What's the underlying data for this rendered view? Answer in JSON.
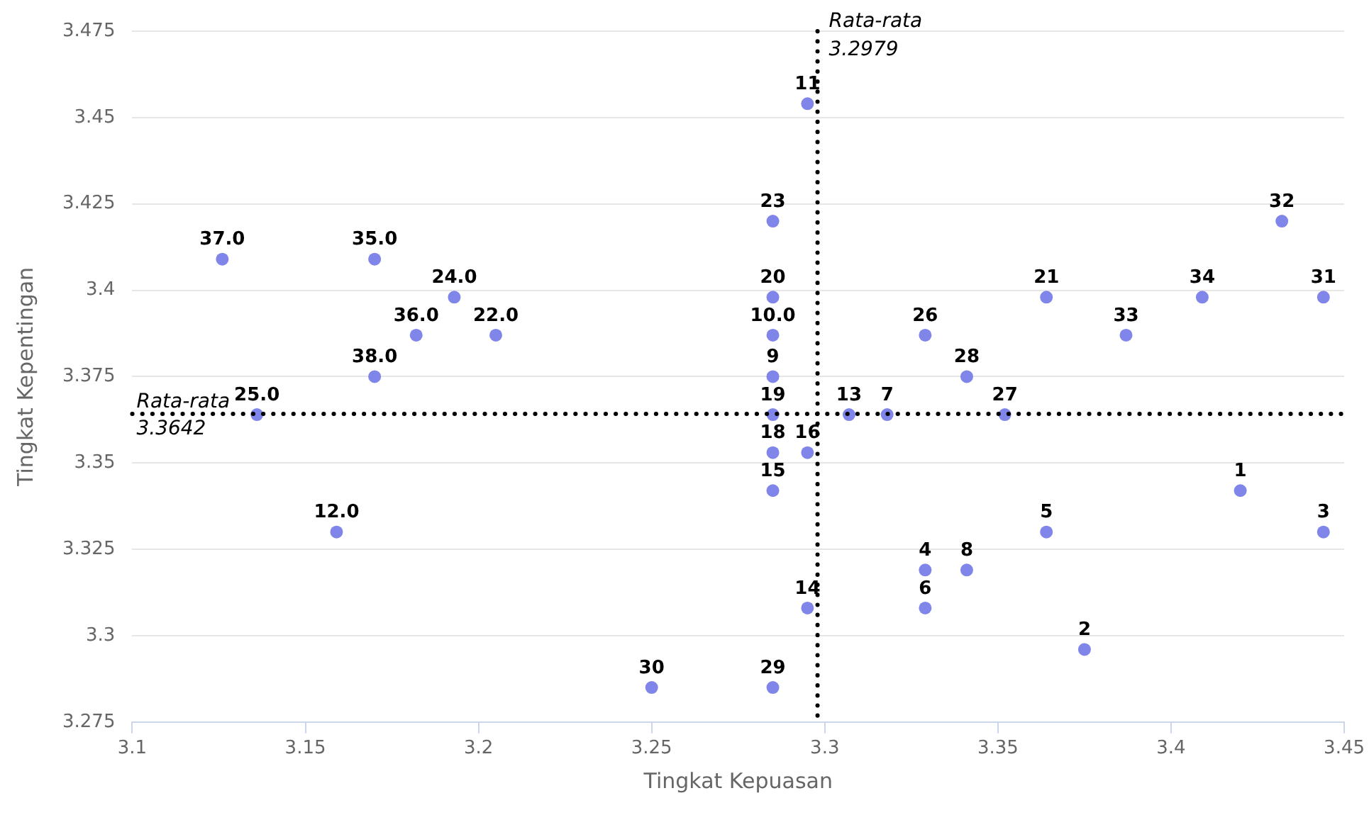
{
  "chart_data": {
    "type": "scatter",
    "xlabel": "Tingkat Kepuasan",
    "ylabel": "Tingkat Kepentingan",
    "xlim": [
      3.1,
      3.45
    ],
    "xticks": [
      3.1,
      3.15,
      3.2,
      3.25,
      3.3,
      3.35,
      3.4,
      3.45
    ],
    "ylim": [
      3.275,
      3.475
    ],
    "yticks": [
      3.275,
      3.3,
      3.325,
      3.35,
      3.375,
      3.4,
      3.425,
      3.45,
      3.475
    ],
    "grid": "y",
    "legend": false,
    "marker": "circle",
    "series": [
      {
        "color": "#8085e9",
        "x": [
          3.42,
          3.375,
          3.444,
          3.329,
          3.364,
          3.329,
          3.318,
          3.341,
          3.285,
          3.285,
          3.295,
          3.159,
          3.307,
          3.295,
          3.285,
          3.295,
          3.285,
          3.285,
          3.285,
          3.205,
          3.364,
          3.193,
          3.285,
          3.136,
          3.329,
          3.352,
          3.341,
          3.285,
          3.25,
          3.444,
          3.432,
          3.387,
          3.409,
          3.17,
          3.182,
          3.126,
          3.17
        ],
        "values": [
          3.342,
          3.296,
          3.33,
          3.319,
          3.33,
          3.308,
          3.364,
          3.319,
          3.375,
          3.387,
          3.454,
          3.33,
          3.364,
          3.308,
          3.342,
          3.353,
          3.353,
          3.364,
          3.398,
          3.387,
          3.398,
          3.398,
          3.42,
          3.364,
          3.387,
          3.364,
          3.375,
          3.285,
          3.285,
          3.398,
          3.42,
          3.387,
          3.398,
          3.409,
          3.387,
          3.409,
          3.375
        ]
      }
    ],
    "annotations": [
      {
        "text": "1",
        "x": 3.42,
        "y": 3.342
      },
      {
        "text": "2",
        "x": 3.375,
        "y": 3.296
      },
      {
        "text": "3",
        "x": 3.444,
        "y": 3.33
      },
      {
        "text": "4",
        "x": 3.329,
        "y": 3.319
      },
      {
        "text": "5",
        "x": 3.364,
        "y": 3.33
      },
      {
        "text": "6",
        "x": 3.329,
        "y": 3.308
      },
      {
        "text": "7",
        "x": 3.318,
        "y": 3.364
      },
      {
        "text": "8",
        "x": 3.341,
        "y": 3.319
      },
      {
        "text": "9",
        "x": 3.285,
        "y": 3.375
      },
      {
        "text": "10.0",
        "x": 3.285,
        "y": 3.387
      },
      {
        "text": "11",
        "x": 3.295,
        "y": 3.454
      },
      {
        "text": "12.0",
        "x": 3.159,
        "y": 3.33
      },
      {
        "text": "13",
        "x": 3.307,
        "y": 3.364
      },
      {
        "text": "14",
        "x": 3.295,
        "y": 3.308
      },
      {
        "text": "15",
        "x": 3.285,
        "y": 3.342
      },
      {
        "text": "16",
        "x": 3.295,
        "y": 3.353
      },
      {
        "text": "18",
        "x": 3.285,
        "y": 3.353
      },
      {
        "text": "19",
        "x": 3.285,
        "y": 3.364
      },
      {
        "text": "20",
        "x": 3.285,
        "y": 3.398
      },
      {
        "text": "22.0",
        "x": 3.205,
        "y": 3.387
      },
      {
        "text": "21",
        "x": 3.364,
        "y": 3.398
      },
      {
        "text": "24.0",
        "x": 3.193,
        "y": 3.398
      },
      {
        "text": "23",
        "x": 3.285,
        "y": 3.42
      },
      {
        "text": "25.0",
        "x": 3.136,
        "y": 3.364
      },
      {
        "text": "26",
        "x": 3.329,
        "y": 3.387
      },
      {
        "text": "27",
        "x": 3.352,
        "y": 3.364
      },
      {
        "text": "28",
        "x": 3.341,
        "y": 3.375
      },
      {
        "text": "29",
        "x": 3.285,
        "y": 3.285
      },
      {
        "text": "30",
        "x": 3.25,
        "y": 3.285
      },
      {
        "text": "31",
        "x": 3.444,
        "y": 3.398
      },
      {
        "text": "32",
        "x": 3.432,
        "y": 3.42
      },
      {
        "text": "33",
        "x": 3.387,
        "y": 3.387
      },
      {
        "text": "34",
        "x": 3.409,
        "y": 3.398
      },
      {
        "text": "35.0",
        "x": 3.17,
        "y": 3.409
      },
      {
        "text": "36.0",
        "x": 3.182,
        "y": 3.387
      },
      {
        "text": "37.0",
        "x": 3.126,
        "y": 3.409
      },
      {
        "text": "38.0",
        "x": 3.17,
        "y": 3.375
      }
    ],
    "ref_lines": [
      {
        "axis": "x",
        "value": 3.2979,
        "label": "Rata-rata\n3.2979",
        "color": "#000000",
        "line_style": "dotted"
      },
      {
        "axis": "y",
        "value": 3.3642,
        "label": "Rata-rata\n3.3642",
        "color": "#000000",
        "line_style": "dotted"
      }
    ]
  }
}
